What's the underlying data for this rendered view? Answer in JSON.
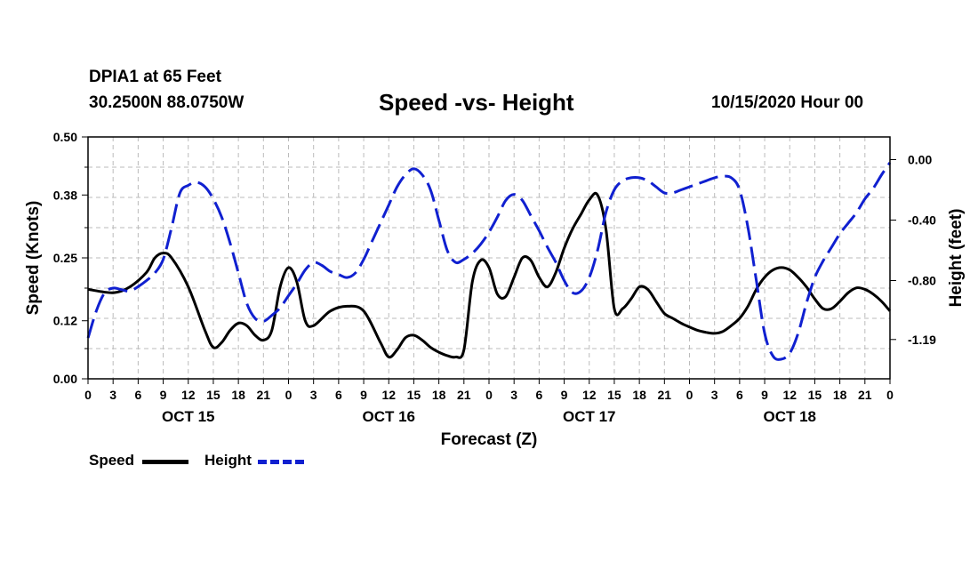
{
  "header": {
    "station": "DPIA1 at 65 Feet",
    "coords": "30.2500N 88.0750W",
    "title": "Speed -vs- Height",
    "datetime": "10/15/2020 Hour 00"
  },
  "legend": {
    "speed_label": "Speed",
    "height_label": "Height"
  },
  "colors": {
    "speed": "#000000",
    "height": "#1020d0",
    "grid": "#bbbbbb"
  },
  "chart_data": {
    "type": "line",
    "title": "Speed -vs- Height",
    "xlabel": "Forecast (Z)",
    "ylabel": "Speed (Knots)",
    "y2label": "Height (feet)",
    "xlim": [
      0,
      96
    ],
    "ylim": [
      0.0,
      0.5
    ],
    "y2lim": [
      -1.45,
      0.15
    ],
    "x_tick_labels": [
      "0",
      "3",
      "6",
      "9",
      "12",
      "15",
      "18",
      "21",
      "0",
      "3",
      "6",
      "9",
      "12",
      "15",
      "18",
      "21",
      "0",
      "3",
      "6",
      "9",
      "12",
      "15",
      "18",
      "21",
      "0",
      "3",
      "6",
      "9",
      "12",
      "15",
      "18",
      "21",
      "0"
    ],
    "y_ticks": [
      "0.00",
      "0.12",
      "0.25",
      "0.38",
      "0.50"
    ],
    "y2_ticks": [
      "0.00",
      "-0.40",
      "-0.80",
      "-1.19"
    ],
    "date_labels": [
      {
        "text": "OCT 15",
        "hour": 12
      },
      {
        "text": "OCT 16",
        "hour": 36
      },
      {
        "text": "OCT 17",
        "hour": 60
      },
      {
        "text": "OCT 18",
        "hour": 84
      }
    ],
    "grid": true,
    "series": [
      {
        "name": "Speed",
        "axis": "left",
        "style": "solid",
        "x": [
          0,
          3,
          5,
          7,
          8,
          9,
          10,
          12,
          14,
          15,
          16,
          17,
          18,
          19,
          20,
          21,
          22,
          23,
          24,
          25,
          26,
          27,
          29,
          31,
          33,
          35,
          36,
          37,
          38,
          39,
          40,
          41,
          42,
          43,
          44,
          45,
          46,
          47,
          48,
          49,
          50,
          51,
          52,
          53,
          54,
          55,
          56,
          57,
          58,
          59,
          60,
          61,
          62,
          63,
          64,
          65,
          66,
          67,
          68,
          69,
          70,
          71,
          72,
          73,
          74,
          75,
          76,
          77,
          78,
          79,
          80,
          81,
          82,
          83,
          84,
          85,
          86,
          87,
          88,
          89,
          90,
          91,
          92,
          93,
          94,
          95,
          96
        ],
        "values": [
          0.185,
          0.178,
          0.19,
          0.22,
          0.25,
          0.26,
          0.25,
          0.19,
          0.1,
          0.065,
          0.075,
          0.1,
          0.115,
          0.11,
          0.09,
          0.08,
          0.1,
          0.19,
          0.23,
          0.2,
          0.12,
          0.11,
          0.14,
          0.15,
          0.14,
          0.075,
          0.045,
          0.06,
          0.085,
          0.09,
          0.08,
          0.065,
          0.055,
          0.048,
          0.045,
          0.06,
          0.2,
          0.245,
          0.23,
          0.175,
          0.17,
          0.21,
          0.25,
          0.245,
          0.21,
          0.19,
          0.22,
          0.27,
          0.31,
          0.34,
          0.37,
          0.38,
          0.31,
          0.145,
          0.145,
          0.165,
          0.19,
          0.185,
          0.16,
          0.135,
          0.125,
          0.115,
          0.107,
          0.1,
          0.096,
          0.094,
          0.098,
          0.11,
          0.125,
          0.15,
          0.185,
          0.21,
          0.225,
          0.23,
          0.225,
          0.21,
          0.19,
          0.165,
          0.145,
          0.145,
          0.16,
          0.178,
          0.188,
          0.185,
          0.175,
          0.16,
          0.14
        ]
      },
      {
        "name": "Height",
        "axis": "right",
        "style": "dashed",
        "x": [
          0,
          1,
          2,
          3,
          4,
          5,
          6,
          7,
          8,
          9,
          10,
          11,
          12,
          13,
          14,
          15,
          16,
          17,
          18,
          19,
          20,
          21,
          22,
          23,
          24,
          25,
          26,
          27,
          28,
          29,
          30,
          31,
          32,
          33,
          34,
          35,
          36,
          37,
          38,
          39,
          40,
          41,
          42,
          43,
          44,
          45,
          46,
          47,
          48,
          49,
          50,
          51,
          52,
          53,
          54,
          55,
          56,
          57,
          58,
          59,
          60,
          61,
          62,
          63,
          64,
          65,
          66,
          67,
          68,
          69,
          70,
          71,
          72,
          73,
          74,
          75,
          76,
          77,
          78,
          79,
          80,
          81,
          82,
          83,
          84,
          85,
          86,
          87,
          88,
          89,
          90,
          91,
          92,
          93,
          94,
          95,
          96
        ],
        "values": [
          -1.18,
          -1.0,
          -0.88,
          -0.85,
          -0.86,
          -0.87,
          -0.84,
          -0.8,
          -0.75,
          -0.66,
          -0.45,
          -0.22,
          -0.17,
          -0.15,
          -0.18,
          -0.26,
          -0.38,
          -0.55,
          -0.75,
          -0.95,
          -1.05,
          -1.07,
          -1.03,
          -0.98,
          -0.9,
          -0.82,
          -0.73,
          -0.68,
          -0.7,
          -0.74,
          -0.76,
          -0.78,
          -0.75,
          -0.66,
          -0.54,
          -0.42,
          -0.3,
          -0.18,
          -0.1,
          -0.06,
          -0.1,
          -0.2,
          -0.4,
          -0.6,
          -0.68,
          -0.66,
          -0.62,
          -0.56,
          -0.48,
          -0.38,
          -0.27,
          -0.23,
          -0.27,
          -0.37,
          -0.47,
          -0.58,
          -0.68,
          -0.8,
          -0.88,
          -0.87,
          -0.78,
          -0.6,
          -0.35,
          -0.2,
          -0.14,
          -0.12,
          -0.12,
          -0.14,
          -0.18,
          -0.22,
          -0.22,
          -0.2,
          -0.18,
          -0.16,
          -0.14,
          -0.12,
          -0.11,
          -0.12,
          -0.2,
          -0.45,
          -0.8,
          -1.15,
          -1.3,
          -1.32,
          -1.28,
          -1.15,
          -0.95,
          -0.78,
          -0.67,
          -0.58,
          -0.49,
          -0.42,
          -0.35,
          -0.26,
          -0.19,
          -0.1,
          -0.02
        ]
      }
    ]
  }
}
